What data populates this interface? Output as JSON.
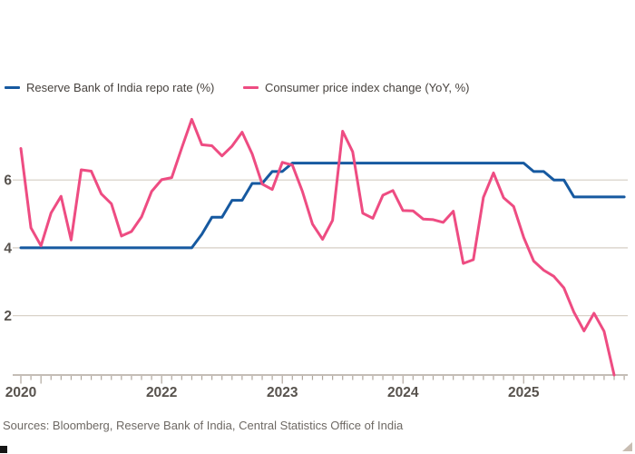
{
  "legend": {
    "items": [
      {
        "label": "Reserve Bank of India repo rate (%)",
        "color": "#1659A0"
      },
      {
        "label": "Consumer price index change (YoY, %)",
        "color": "#EE4C82"
      }
    ]
  },
  "source_line": "Sources: Bloomberg, Reserve Bank of India, Central Statistics Office of India",
  "colors": {
    "grid": "#D9D2C9",
    "axis": "#B0A79E",
    "axis_label": "#57524D",
    "legend_text": "#48433F",
    "source_text": "#6E6964",
    "resize_grip": "#C8BDB2",
    "corner_square": "#151515"
  },
  "chart_data": {
    "type": "line",
    "title": "",
    "xlabel": "",
    "ylabel": "",
    "frequency": "monthly",
    "x_start": "2020-11",
    "x_end": "2025-11",
    "ylim": [
      0.25,
      8.2
    ],
    "grid": "horizontal-only",
    "legend_position": "top",
    "y_axis": {
      "gridlines": [
        6,
        4,
        2
      ],
      "tick_labels": [
        "6",
        "4",
        "2"
      ]
    },
    "x_axis": {
      "year_labels": [
        {
          "label": "2020",
          "month_index": 0
        },
        {
          "label": "2022",
          "month_index": 14
        },
        {
          "label": "2023",
          "month_index": 26
        },
        {
          "label": "2024",
          "month_index": 38
        },
        {
          "label": "2025",
          "month_index": 50
        }
      ],
      "major_tick_month_indices": [
        0,
        2,
        14,
        26,
        38,
        50
      ],
      "minor_ticks_every_month": true,
      "total_months": 61
    },
    "series": [
      {
        "name": "Reserve Bank of India repo rate (%)",
        "color": "#1659A0",
        "start_month_index": 0,
        "values": [
          4.0,
          4.0,
          4.0,
          4.0,
          4.0,
          4.0,
          4.0,
          4.0,
          4.0,
          4.0,
          4.0,
          4.0,
          4.0,
          4.0,
          4.0,
          4.0,
          4.0,
          4.0,
          4.4,
          4.9,
          4.9,
          5.4,
          5.4,
          5.9,
          5.9,
          6.25,
          6.25,
          6.5,
          6.5,
          6.5,
          6.5,
          6.5,
          6.5,
          6.5,
          6.5,
          6.5,
          6.5,
          6.5,
          6.5,
          6.5,
          6.5,
          6.5,
          6.5,
          6.5,
          6.5,
          6.5,
          6.5,
          6.5,
          6.5,
          6.5,
          6.5,
          6.25,
          6.25,
          6.0,
          6.0,
          5.5,
          5.5,
          5.5,
          5.5,
          5.5,
          5.5
        ]
      },
      {
        "name": "Consumer price index change (YoY, %)",
        "color": "#EE4C82",
        "start_month_index": 0,
        "values": [
          6.93,
          4.59,
          4.06,
          5.03,
          5.52,
          4.23,
          6.3,
          6.26,
          5.59,
          5.3,
          4.35,
          4.48,
          4.91,
          5.66,
          6.01,
          6.07,
          6.95,
          7.79,
          7.04,
          7.01,
          6.71,
          7.0,
          7.41,
          6.77,
          5.88,
          5.72,
          6.52,
          6.44,
          5.66,
          4.7,
          4.25,
          4.81,
          7.44,
          6.83,
          5.02,
          4.87,
          5.55,
          5.69,
          5.1,
          5.09,
          4.85,
          4.83,
          4.75,
          5.08,
          3.54,
          3.65,
          5.49,
          6.21,
          5.48,
          5.22,
          4.31,
          3.61,
          3.34,
          3.16,
          2.82,
          2.1,
          1.55,
          2.07,
          1.54,
          0.25
        ]
      }
    ]
  }
}
